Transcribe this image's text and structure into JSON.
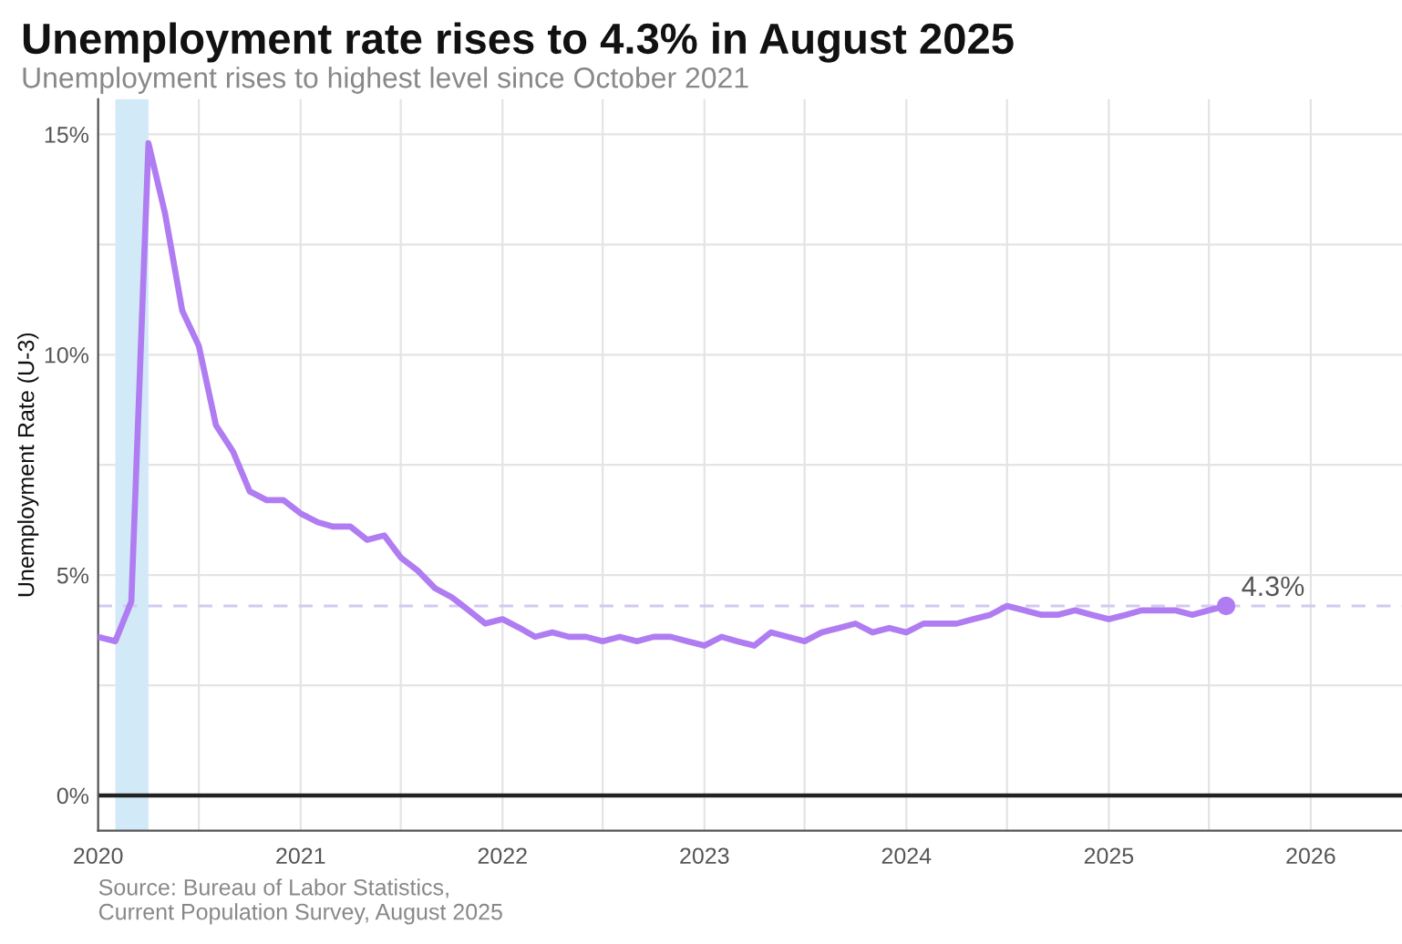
{
  "chart_data": {
    "type": "line",
    "title": "Unemployment rate rises to 4.3% in August 2025",
    "subtitle": "Unemployment rises to highest level since October 2021",
    "ylabel": "Unemployment Rate (U-3)",
    "x": [
      "2020-01",
      "2020-02",
      "2020-03",
      "2020-04",
      "2020-05",
      "2020-06",
      "2020-07",
      "2020-08",
      "2020-09",
      "2020-10",
      "2020-11",
      "2020-12",
      "2021-01",
      "2021-02",
      "2021-03",
      "2021-04",
      "2021-05",
      "2021-06",
      "2021-07",
      "2021-08",
      "2021-09",
      "2021-10",
      "2021-11",
      "2021-12",
      "2022-01",
      "2022-02",
      "2022-03",
      "2022-04",
      "2022-05",
      "2022-06",
      "2022-07",
      "2022-08",
      "2022-09",
      "2022-10",
      "2022-11",
      "2022-12",
      "2023-01",
      "2023-02",
      "2023-03",
      "2023-04",
      "2023-05",
      "2023-06",
      "2023-07",
      "2023-08",
      "2023-09",
      "2023-10",
      "2023-11",
      "2023-12",
      "2024-01",
      "2024-02",
      "2024-03",
      "2024-04",
      "2024-05",
      "2024-06",
      "2024-07",
      "2024-08",
      "2024-09",
      "2024-10",
      "2024-11",
      "2024-12",
      "2025-01",
      "2025-02",
      "2025-03",
      "2025-04",
      "2025-05",
      "2025-06",
      "2025-07",
      "2025-08"
    ],
    "series": [
      {
        "color": "#b07cf2",
        "values": [
          3.6,
          3.5,
          4.4,
          14.8,
          13.2,
          11.0,
          10.2,
          8.4,
          7.8,
          6.9,
          6.7,
          6.7,
          6.4,
          6.2,
          6.1,
          6.1,
          5.8,
          5.9,
          5.4,
          5.1,
          4.7,
          4.5,
          4.2,
          3.9,
          4.0,
          3.8,
          3.6,
          3.7,
          3.6,
          3.6,
          3.5,
          3.6,
          3.5,
          3.6,
          3.6,
          3.5,
          3.4,
          3.6,
          3.5,
          3.4,
          3.7,
          3.6,
          3.5,
          3.7,
          3.8,
          3.9,
          3.7,
          3.8,
          3.7,
          3.9,
          3.9,
          3.9,
          4.0,
          4.1,
          4.3,
          4.2,
          4.1,
          4.1,
          4.2,
          4.1,
          4.0,
          4.1,
          4.2,
          4.2,
          4.2,
          4.1,
          4.2,
          4.3
        ]
      },
      {
        "type": "scatter",
        "color": "#b07cf2",
        "x": [
          "2025-08"
        ],
        "values": [
          4.3
        ]
      }
    ],
    "xlim": [
      "2020-01-01",
      "2026-06-15"
    ],
    "xticks": [
      {
        "value": "2020-01-01",
        "label": "2020"
      },
      {
        "value": "2020-07-01",
        "label": null
      },
      {
        "value": "2021-01-01",
        "label": "2021"
      },
      {
        "value": "2021-07-01",
        "label": null
      },
      {
        "value": "2022-01-01",
        "label": "2022"
      },
      {
        "value": "2022-07-01",
        "label": null
      },
      {
        "value": "2023-01-01",
        "label": "2023"
      },
      {
        "value": "2023-07-01",
        "label": null
      },
      {
        "value": "2024-01-01",
        "label": "2024"
      },
      {
        "value": "2024-07-01",
        "label": null
      },
      {
        "value": "2025-01-01",
        "label": "2025"
      },
      {
        "value": "2025-07-01",
        "label": null
      },
      {
        "value": "2026-01-01",
        "label": "2026"
      }
    ],
    "ylim": [
      -0.8,
      15.8
    ],
    "yticks": [
      {
        "value": 0,
        "label": "0%"
      },
      {
        "value": 2.5,
        "label": null
      },
      {
        "value": 5,
        "label": "5%"
      },
      {
        "value": 7.5,
        "label": null
      },
      {
        "value": 10,
        "label": "10%"
      },
      {
        "value": 12.5,
        "label": null
      },
      {
        "value": 15,
        "label": "15%"
      }
    ],
    "grid": true,
    "line_style": "solid",
    "bands": [
      {
        "axis": "x",
        "from": "2020-02-01",
        "to": "2020-04-01",
        "color": "#d2eaf7"
      }
    ],
    "ref_lines": [
      {
        "axis": "y",
        "value": 4.3,
        "color": "#d4c8f0",
        "line_style": "dashed"
      },
      {
        "axis": "y",
        "value": 0,
        "color": "#222222",
        "line_style": "solid"
      }
    ],
    "annotations": [
      {
        "text": "4.3%",
        "x": "2025-08",
        "y": 4.3
      },
      "Source: Bureau of Labor Statistics,\nCurrent Population Survey, August 2025"
    ]
  }
}
